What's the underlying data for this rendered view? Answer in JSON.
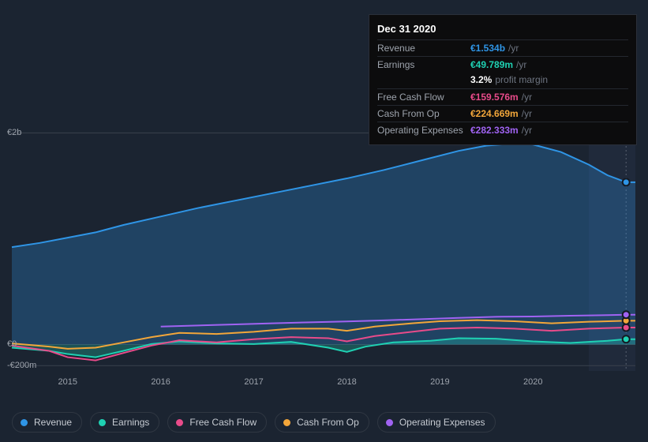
{
  "chart": {
    "type": "area-line",
    "background_color": "#1b2431",
    "x": {
      "min": 2014.4,
      "max": 2021.1,
      "ticks": [
        2015,
        2016,
        2017,
        2018,
        2019,
        2020
      ],
      "tick_labels": [
        "2015",
        "2016",
        "2017",
        "2018",
        "2019",
        "2020"
      ]
    },
    "y": {
      "min": -250,
      "max": 2100,
      "ticks": [
        -200,
        0,
        2000
      ],
      "tick_labels": [
        "-€200m",
        "€0",
        "€2b"
      ]
    },
    "cursor_x": 2021.0,
    "highlight_band": {
      "from": 2020.6,
      "to": 2021.1,
      "color": "#243044",
      "opacity": 0.55
    },
    "series": [
      {
        "id": "revenue",
        "label": "Revenue",
        "color": "#2f95e6",
        "area": true,
        "points": [
          [
            2014.4,
            920
          ],
          [
            2014.7,
            960
          ],
          [
            2015.0,
            1010
          ],
          [
            2015.3,
            1060
          ],
          [
            2015.6,
            1130
          ],
          [
            2016.0,
            1210
          ],
          [
            2016.4,
            1290
          ],
          [
            2016.8,
            1360
          ],
          [
            2017.2,
            1430
          ],
          [
            2017.6,
            1500
          ],
          [
            2018.0,
            1570
          ],
          [
            2018.4,
            1650
          ],
          [
            2018.8,
            1740
          ],
          [
            2019.2,
            1830
          ],
          [
            2019.5,
            1880
          ],
          [
            2019.8,
            1900
          ],
          [
            2020.0,
            1890
          ],
          [
            2020.3,
            1820
          ],
          [
            2020.6,
            1700
          ],
          [
            2020.8,
            1600
          ],
          [
            2021.0,
            1534
          ],
          [
            2021.1,
            1534
          ]
        ]
      },
      {
        "id": "earnings",
        "label": "Earnings",
        "color": "#1fd1b3",
        "area": true,
        "points": [
          [
            2014.4,
            -30
          ],
          [
            2014.8,
            -60
          ],
          [
            2015.0,
            -90
          ],
          [
            2015.3,
            -120
          ],
          [
            2015.6,
            -60
          ],
          [
            2015.9,
            5
          ],
          [
            2016.2,
            30
          ],
          [
            2016.6,
            10
          ],
          [
            2017.0,
            5
          ],
          [
            2017.4,
            25
          ],
          [
            2017.8,
            -30
          ],
          [
            2018.0,
            -70
          ],
          [
            2018.2,
            -20
          ],
          [
            2018.5,
            20
          ],
          [
            2018.9,
            35
          ],
          [
            2019.2,
            60
          ],
          [
            2019.6,
            55
          ],
          [
            2020.0,
            30
          ],
          [
            2020.4,
            15
          ],
          [
            2020.8,
            35
          ],
          [
            2021.0,
            50
          ],
          [
            2021.1,
            50
          ]
        ]
      },
      {
        "id": "fcf",
        "label": "Free Cash Flow",
        "color": "#e84b8a",
        "area": false,
        "points": [
          [
            2014.4,
            -10
          ],
          [
            2014.8,
            -60
          ],
          [
            2015.0,
            -120
          ],
          [
            2015.3,
            -150
          ],
          [
            2015.6,
            -80
          ],
          [
            2015.9,
            -10
          ],
          [
            2016.2,
            40
          ],
          [
            2016.6,
            20
          ],
          [
            2017.0,
            50
          ],
          [
            2017.4,
            70
          ],
          [
            2017.8,
            60
          ],
          [
            2018.0,
            30
          ],
          [
            2018.3,
            80
          ],
          [
            2018.7,
            120
          ],
          [
            2019.0,
            150
          ],
          [
            2019.4,
            160
          ],
          [
            2019.8,
            150
          ],
          [
            2020.2,
            130
          ],
          [
            2020.6,
            150
          ],
          [
            2021.0,
            160
          ],
          [
            2021.1,
            160
          ]
        ]
      },
      {
        "id": "cfo",
        "label": "Cash From Op",
        "color": "#f2a63a",
        "area": false,
        "points": [
          [
            2014.4,
            10
          ],
          [
            2014.8,
            -20
          ],
          [
            2015.0,
            -40
          ],
          [
            2015.3,
            -30
          ],
          [
            2015.6,
            20
          ],
          [
            2015.9,
            70
          ],
          [
            2016.2,
            110
          ],
          [
            2016.6,
            100
          ],
          [
            2017.0,
            120
          ],
          [
            2017.4,
            150
          ],
          [
            2017.8,
            150
          ],
          [
            2018.0,
            130
          ],
          [
            2018.3,
            170
          ],
          [
            2018.7,
            200
          ],
          [
            2019.0,
            220
          ],
          [
            2019.4,
            230
          ],
          [
            2019.8,
            220
          ],
          [
            2020.2,
            200
          ],
          [
            2020.6,
            215
          ],
          [
            2021.0,
            225
          ],
          [
            2021.1,
            225
          ]
        ]
      },
      {
        "id": "opex",
        "label": "Operating Expenses",
        "color": "#a063f2",
        "area": false,
        "points": [
          [
            2016.0,
            170
          ],
          [
            2016.4,
            180
          ],
          [
            2016.8,
            190
          ],
          [
            2017.2,
            200
          ],
          [
            2017.6,
            210
          ],
          [
            2018.0,
            218
          ],
          [
            2018.4,
            228
          ],
          [
            2018.8,
            240
          ],
          [
            2019.2,
            252
          ],
          [
            2019.6,
            262
          ],
          [
            2020.0,
            265
          ],
          [
            2020.4,
            272
          ],
          [
            2020.8,
            278
          ],
          [
            2021.0,
            282
          ],
          [
            2021.1,
            282
          ]
        ]
      }
    ]
  },
  "tooltip": {
    "date": "Dec 31 2020",
    "rows": [
      {
        "label": "Revenue",
        "value": "€1.534b",
        "unit": "/yr",
        "color": "#2f95e6"
      },
      {
        "label": "Earnings",
        "value": "€49.789m",
        "unit": "/yr",
        "color": "#1fd1b3"
      }
    ],
    "margin": {
      "pct": "3.2%",
      "text": "profit margin"
    },
    "rows2": [
      {
        "label": "Free Cash Flow",
        "value": "€159.576m",
        "unit": "/yr",
        "color": "#e84b8a"
      },
      {
        "label": "Cash From Op",
        "value": "€224.669m",
        "unit": "/yr",
        "color": "#f2a63a"
      },
      {
        "label": "Operating Expenses",
        "value": "€282.333m",
        "unit": "/yr",
        "color": "#a063f2"
      }
    ]
  },
  "legend": {
    "items": [
      {
        "id": "revenue",
        "label": "Revenue",
        "color": "#2f95e6"
      },
      {
        "id": "earnings",
        "label": "Earnings",
        "color": "#1fd1b3"
      },
      {
        "id": "fcf",
        "label": "Free Cash Flow",
        "color": "#e84b8a"
      },
      {
        "id": "cfo",
        "label": "Cash From Op",
        "color": "#f2a63a"
      },
      {
        "id": "opex",
        "label": "Operating Expenses",
        "color": "#a063f2"
      }
    ]
  }
}
